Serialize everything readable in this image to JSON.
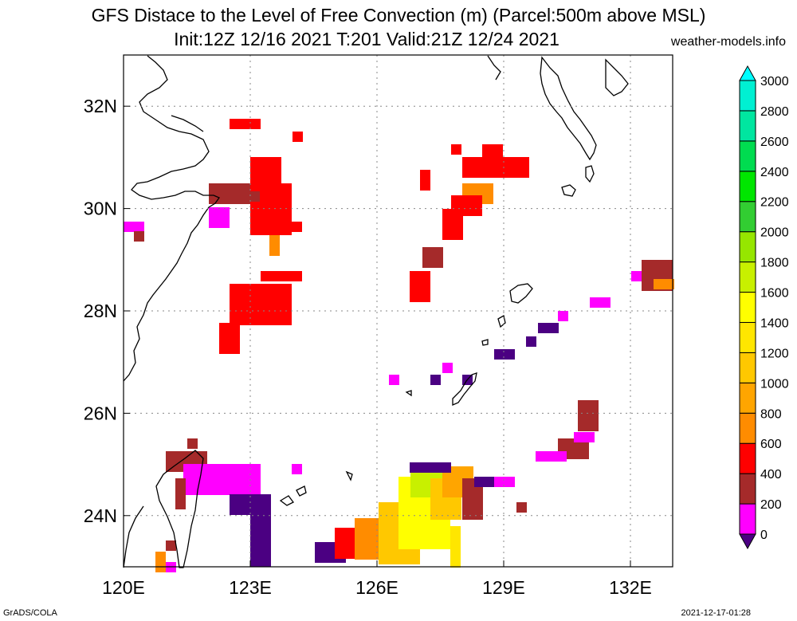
{
  "header": {
    "title_line1": "GFS Distace to the Level of Free Convection (m) (Parcel:500m above MSL)",
    "title_line2": "Init:12Z 12/16 2021 T:201 Valid:21Z 12/24 2021",
    "site": "weather-models.info"
  },
  "map": {
    "lon_range": [
      120,
      133
    ],
    "lat_range": [
      23,
      33
    ],
    "lon_ticks": [
      {
        "v": 120,
        "label": "120E"
      },
      {
        "v": 123,
        "label": "123E"
      },
      {
        "v": 126,
        "label": "126E"
      },
      {
        "v": 129,
        "label": "129E"
      },
      {
        "v": 132,
        "label": "132E"
      }
    ],
    "lat_ticks": [
      {
        "v": 24,
        "label": "24N"
      },
      {
        "v": 26,
        "label": "26N"
      },
      {
        "v": 28,
        "label": "28N"
      },
      {
        "v": 30,
        "label": "30N"
      },
      {
        "v": 32,
        "label": "32N"
      }
    ],
    "grid": true
  },
  "colorbar": {
    "levels": [
      "0",
      "200",
      "400",
      "600",
      "800",
      "1000",
      "1200",
      "1400",
      "1600",
      "1800",
      "2000",
      "2200",
      "2400",
      "2600",
      "2800",
      "3000"
    ],
    "colors": [
      "#4b0082",
      "#ff00ff",
      "#a52a2a",
      "#ff0000",
      "#ff8c00",
      "#ffa500",
      "#ffc800",
      "#ffe600",
      "#ffff00",
      "#c8f000",
      "#96e600",
      "#32cd32",
      "#00e600",
      "#00dc50",
      "#00e6a0",
      "#00f0d2",
      "#00ffff"
    ]
  },
  "footer": {
    "left": "GrADS/COLA",
    "right": "2021-12-17-01:28"
  }
}
